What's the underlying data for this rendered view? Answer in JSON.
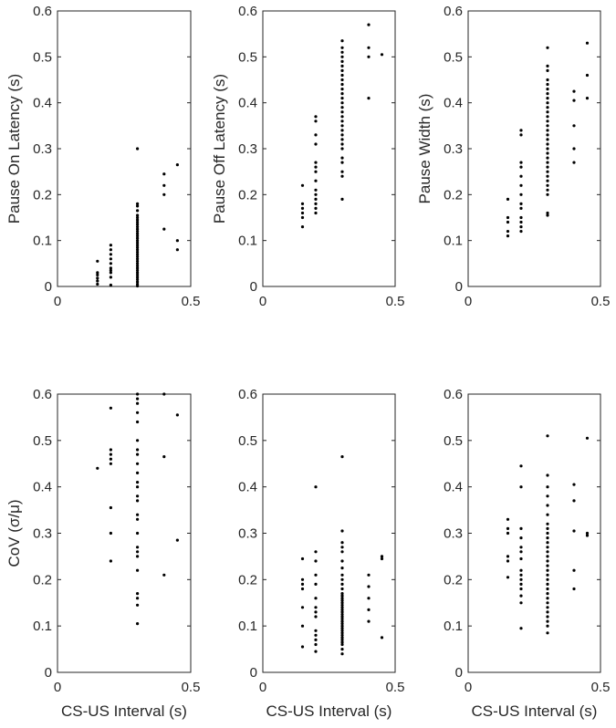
{
  "chart_data": [
    {
      "type": "scatter",
      "title": "",
      "xlabel": "",
      "ylabel": "Pause On Latency (s)",
      "xlim": [
        0,
        0.5
      ],
      "ylim": [
        0,
        0.6
      ],
      "xticks": [
        "0",
        "0.5"
      ],
      "yticks": [
        "0",
        "0.1",
        "0.2",
        "0.3",
        "0.4",
        "0.5",
        "0.6"
      ],
      "grid": false,
      "points": [
        [
          0.15,
          0.005
        ],
        [
          0.15,
          0.012
        ],
        [
          0.15,
          0.018
        ],
        [
          0.15,
          0.025
        ],
        [
          0.15,
          0.03
        ],
        [
          0.15,
          0.055
        ],
        [
          0.2,
          0.003
        ],
        [
          0.2,
          0.02
        ],
        [
          0.2,
          0.03
        ],
        [
          0.2,
          0.035
        ],
        [
          0.2,
          0.04
        ],
        [
          0.2,
          0.05
        ],
        [
          0.2,
          0.06
        ],
        [
          0.2,
          0.07
        ],
        [
          0.2,
          0.08
        ],
        [
          0.2,
          0.09
        ],
        [
          0.3,
          0.001
        ],
        [
          0.3,
          0.005
        ],
        [
          0.3,
          0.01
        ],
        [
          0.3,
          0.015
        ],
        [
          0.3,
          0.02
        ],
        [
          0.3,
          0.025
        ],
        [
          0.3,
          0.03
        ],
        [
          0.3,
          0.035
        ],
        [
          0.3,
          0.04
        ],
        [
          0.3,
          0.045
        ],
        [
          0.3,
          0.05
        ],
        [
          0.3,
          0.055
        ],
        [
          0.3,
          0.06
        ],
        [
          0.3,
          0.065
        ],
        [
          0.3,
          0.07
        ],
        [
          0.3,
          0.075
        ],
        [
          0.3,
          0.08
        ],
        [
          0.3,
          0.085
        ],
        [
          0.3,
          0.09
        ],
        [
          0.3,
          0.095
        ],
        [
          0.3,
          0.1
        ],
        [
          0.3,
          0.105
        ],
        [
          0.3,
          0.11
        ],
        [
          0.3,
          0.115
        ],
        [
          0.3,
          0.12
        ],
        [
          0.3,
          0.125
        ],
        [
          0.3,
          0.13
        ],
        [
          0.3,
          0.135
        ],
        [
          0.3,
          0.14
        ],
        [
          0.3,
          0.145
        ],
        [
          0.3,
          0.15
        ],
        [
          0.3,
          0.155
        ],
        [
          0.3,
          0.165
        ],
        [
          0.3,
          0.175
        ],
        [
          0.3,
          0.18
        ],
        [
          0.3,
          0.3
        ],
        [
          0.4,
          0.125
        ],
        [
          0.4,
          0.2
        ],
        [
          0.4,
          0.22
        ],
        [
          0.4,
          0.245
        ],
        [
          0.45,
          0.08
        ],
        [
          0.45,
          0.1
        ],
        [
          0.45,
          0.265
        ]
      ]
    },
    {
      "type": "scatter",
      "title": "",
      "xlabel": "",
      "ylabel": "Pause Off Latency (s)",
      "xlim": [
        0,
        0.5
      ],
      "ylim": [
        0,
        0.6
      ],
      "xticks": [
        "0",
        "0.5"
      ],
      "yticks": [
        "0",
        "0.1",
        "0.2",
        "0.3",
        "0.4",
        "0.5",
        "0.6"
      ],
      "grid": false,
      "points": [
        [
          0.15,
          0.13
        ],
        [
          0.15,
          0.15
        ],
        [
          0.15,
          0.16
        ],
        [
          0.15,
          0.17
        ],
        [
          0.15,
          0.18
        ],
        [
          0.15,
          0.22
        ],
        [
          0.2,
          0.16
        ],
        [
          0.2,
          0.17
        ],
        [
          0.2,
          0.18
        ],
        [
          0.2,
          0.19
        ],
        [
          0.2,
          0.2
        ],
        [
          0.2,
          0.21
        ],
        [
          0.2,
          0.23
        ],
        [
          0.2,
          0.25
        ],
        [
          0.2,
          0.26
        ],
        [
          0.2,
          0.27
        ],
        [
          0.2,
          0.31
        ],
        [
          0.2,
          0.33
        ],
        [
          0.2,
          0.36
        ],
        [
          0.2,
          0.37
        ],
        [
          0.3,
          0.19
        ],
        [
          0.3,
          0.24
        ],
        [
          0.3,
          0.25
        ],
        [
          0.3,
          0.27
        ],
        [
          0.3,
          0.28
        ],
        [
          0.3,
          0.3
        ],
        [
          0.3,
          0.31
        ],
        [
          0.3,
          0.32
        ],
        [
          0.3,
          0.33
        ],
        [
          0.3,
          0.34
        ],
        [
          0.3,
          0.35
        ],
        [
          0.3,
          0.36
        ],
        [
          0.3,
          0.37
        ],
        [
          0.3,
          0.38
        ],
        [
          0.3,
          0.39
        ],
        [
          0.3,
          0.4
        ],
        [
          0.3,
          0.41
        ],
        [
          0.3,
          0.42
        ],
        [
          0.3,
          0.43
        ],
        [
          0.3,
          0.44
        ],
        [
          0.3,
          0.45
        ],
        [
          0.3,
          0.46
        ],
        [
          0.3,
          0.47
        ],
        [
          0.3,
          0.48
        ],
        [
          0.3,
          0.49
        ],
        [
          0.3,
          0.5
        ],
        [
          0.3,
          0.51
        ],
        [
          0.3,
          0.52
        ],
        [
          0.3,
          0.535
        ],
        [
          0.4,
          0.41
        ],
        [
          0.4,
          0.5
        ],
        [
          0.4,
          0.52
        ],
        [
          0.4,
          0.57
        ],
        [
          0.45,
          0.505
        ]
      ]
    },
    {
      "type": "scatter",
      "title": "",
      "xlabel": "",
      "ylabel": "Pause Width (s)",
      "xlim": [
        0,
        0.5
      ],
      "ylim": [
        0,
        0.6
      ],
      "xticks": [
        "0",
        "0.5"
      ],
      "yticks": [
        "0",
        "0.1",
        "0.2",
        "0.3",
        "0.4",
        "0.5",
        "0.6"
      ],
      "grid": false,
      "points": [
        [
          0.15,
          0.11
        ],
        [
          0.15,
          0.12
        ],
        [
          0.15,
          0.14
        ],
        [
          0.15,
          0.15
        ],
        [
          0.15,
          0.19
        ],
        [
          0.2,
          0.12
        ],
        [
          0.2,
          0.13
        ],
        [
          0.2,
          0.14
        ],
        [
          0.2,
          0.15
        ],
        [
          0.2,
          0.17
        ],
        [
          0.2,
          0.18
        ],
        [
          0.2,
          0.2
        ],
        [
          0.2,
          0.22
        ],
        [
          0.2,
          0.24
        ],
        [
          0.2,
          0.26
        ],
        [
          0.2,
          0.27
        ],
        [
          0.2,
          0.33
        ],
        [
          0.2,
          0.34
        ],
        [
          0.3,
          0.155
        ],
        [
          0.3,
          0.16
        ],
        [
          0.3,
          0.2
        ],
        [
          0.3,
          0.21
        ],
        [
          0.3,
          0.22
        ],
        [
          0.3,
          0.23
        ],
        [
          0.3,
          0.24
        ],
        [
          0.3,
          0.25
        ],
        [
          0.3,
          0.26
        ],
        [
          0.3,
          0.27
        ],
        [
          0.3,
          0.28
        ],
        [
          0.3,
          0.29
        ],
        [
          0.3,
          0.3
        ],
        [
          0.3,
          0.31
        ],
        [
          0.3,
          0.32
        ],
        [
          0.3,
          0.33
        ],
        [
          0.3,
          0.34
        ],
        [
          0.3,
          0.35
        ],
        [
          0.3,
          0.36
        ],
        [
          0.3,
          0.37
        ],
        [
          0.3,
          0.38
        ],
        [
          0.3,
          0.39
        ],
        [
          0.3,
          0.4
        ],
        [
          0.3,
          0.41
        ],
        [
          0.3,
          0.42
        ],
        [
          0.3,
          0.43
        ],
        [
          0.3,
          0.44
        ],
        [
          0.3,
          0.45
        ],
        [
          0.3,
          0.47
        ],
        [
          0.3,
          0.48
        ],
        [
          0.3,
          0.52
        ],
        [
          0.4,
          0.27
        ],
        [
          0.4,
          0.3
        ],
        [
          0.4,
          0.35
        ],
        [
          0.4,
          0.405
        ],
        [
          0.4,
          0.425
        ],
        [
          0.45,
          0.41
        ],
        [
          0.45,
          0.46
        ],
        [
          0.45,
          0.53
        ]
      ]
    },
    {
      "type": "scatter",
      "title": "",
      "xlabel": "CS-US Interval (s)",
      "ylabel": "CoV (σ/μ)",
      "xlim": [
        0,
        0.5
      ],
      "ylim": [
        0,
        0.6
      ],
      "xticks": [
        "0",
        "0.5"
      ],
      "yticks": [
        "0",
        "0.1",
        "0.2",
        "0.3",
        "0.4",
        "0.5",
        "0.6"
      ],
      "grid": false,
      "points": [
        [
          0.15,
          0.44
        ],
        [
          0.2,
          0.24
        ],
        [
          0.2,
          0.3
        ],
        [
          0.2,
          0.355
        ],
        [
          0.2,
          0.45
        ],
        [
          0.2,
          0.46
        ],
        [
          0.2,
          0.47
        ],
        [
          0.2,
          0.48
        ],
        [
          0.2,
          0.57
        ],
        [
          0.3,
          0.105
        ],
        [
          0.3,
          0.145
        ],
        [
          0.3,
          0.16
        ],
        [
          0.3,
          0.17
        ],
        [
          0.3,
          0.22
        ],
        [
          0.3,
          0.25
        ],
        [
          0.3,
          0.26
        ],
        [
          0.3,
          0.27
        ],
        [
          0.3,
          0.3
        ],
        [
          0.3,
          0.33
        ],
        [
          0.3,
          0.34
        ],
        [
          0.3,
          0.37
        ],
        [
          0.3,
          0.38
        ],
        [
          0.3,
          0.4
        ],
        [
          0.3,
          0.41
        ],
        [
          0.3,
          0.43
        ],
        [
          0.3,
          0.45
        ],
        [
          0.3,
          0.47
        ],
        [
          0.3,
          0.48
        ],
        [
          0.3,
          0.5
        ],
        [
          0.3,
          0.54
        ],
        [
          0.3,
          0.56
        ],
        [
          0.3,
          0.58
        ],
        [
          0.3,
          0.59
        ],
        [
          0.3,
          0.6
        ],
        [
          0.4,
          0.21
        ],
        [
          0.4,
          0.465
        ],
        [
          0.4,
          0.6
        ],
        [
          0.45,
          0.285
        ],
        [
          0.45,
          0.555
        ]
      ]
    },
    {
      "type": "scatter",
      "title": "",
      "xlabel": "CS-US Interval (s)",
      "ylabel": "",
      "xlim": [
        0,
        0.5
      ],
      "ylim": [
        0,
        0.6
      ],
      "xticks": [
        "0",
        "0.5"
      ],
      "yticks": [
        "0",
        "0.1",
        "0.2",
        "0.3",
        "0.4",
        "0.5",
        "0.6"
      ],
      "grid": false,
      "points": [
        [
          0.15,
          0.055
        ],
        [
          0.15,
          0.1
        ],
        [
          0.15,
          0.14
        ],
        [
          0.15,
          0.18
        ],
        [
          0.15,
          0.19
        ],
        [
          0.15,
          0.2
        ],
        [
          0.15,
          0.245
        ],
        [
          0.2,
          0.045
        ],
        [
          0.2,
          0.06
        ],
        [
          0.2,
          0.07
        ],
        [
          0.2,
          0.08
        ],
        [
          0.2,
          0.09
        ],
        [
          0.2,
          0.12
        ],
        [
          0.2,
          0.13
        ],
        [
          0.2,
          0.14
        ],
        [
          0.2,
          0.16
        ],
        [
          0.2,
          0.19
        ],
        [
          0.2,
          0.21
        ],
        [
          0.2,
          0.24
        ],
        [
          0.2,
          0.26
        ],
        [
          0.2,
          0.4
        ],
        [
          0.3,
          0.04
        ],
        [
          0.3,
          0.05
        ],
        [
          0.3,
          0.06
        ],
        [
          0.3,
          0.065
        ],
        [
          0.3,
          0.07
        ],
        [
          0.3,
          0.075
        ],
        [
          0.3,
          0.08
        ],
        [
          0.3,
          0.085
        ],
        [
          0.3,
          0.09
        ],
        [
          0.3,
          0.095
        ],
        [
          0.3,
          0.1
        ],
        [
          0.3,
          0.105
        ],
        [
          0.3,
          0.11
        ],
        [
          0.3,
          0.115
        ],
        [
          0.3,
          0.12
        ],
        [
          0.3,
          0.125
        ],
        [
          0.3,
          0.13
        ],
        [
          0.3,
          0.135
        ],
        [
          0.3,
          0.14
        ],
        [
          0.3,
          0.145
        ],
        [
          0.3,
          0.15
        ],
        [
          0.3,
          0.155
        ],
        [
          0.3,
          0.16
        ],
        [
          0.3,
          0.165
        ],
        [
          0.3,
          0.17
        ],
        [
          0.3,
          0.18
        ],
        [
          0.3,
          0.19
        ],
        [
          0.3,
          0.2
        ],
        [
          0.3,
          0.21
        ],
        [
          0.3,
          0.225
        ],
        [
          0.3,
          0.24
        ],
        [
          0.3,
          0.26
        ],
        [
          0.3,
          0.27
        ],
        [
          0.3,
          0.28
        ],
        [
          0.3,
          0.305
        ],
        [
          0.3,
          0.465
        ],
        [
          0.4,
          0.11
        ],
        [
          0.4,
          0.135
        ],
        [
          0.4,
          0.16
        ],
        [
          0.4,
          0.185
        ],
        [
          0.4,
          0.21
        ],
        [
          0.45,
          0.075
        ],
        [
          0.45,
          0.245
        ],
        [
          0.45,
          0.25
        ]
      ]
    },
    {
      "type": "scatter",
      "title": "",
      "xlabel": "CS-US Interval (s)",
      "ylabel": "",
      "xlim": [
        0,
        0.5
      ],
      "ylim": [
        0,
        0.6
      ],
      "xticks": [
        "0",
        "0.5"
      ],
      "yticks": [
        "0",
        "0.1",
        "0.2",
        "0.3",
        "0.4",
        "0.5",
        "0.6"
      ],
      "grid": false,
      "points": [
        [
          0.15,
          0.205
        ],
        [
          0.15,
          0.24
        ],
        [
          0.15,
          0.25
        ],
        [
          0.15,
          0.3
        ],
        [
          0.15,
          0.31
        ],
        [
          0.15,
          0.33
        ],
        [
          0.2,
          0.095
        ],
        [
          0.2,
          0.15
        ],
        [
          0.2,
          0.165
        ],
        [
          0.2,
          0.18
        ],
        [
          0.2,
          0.19
        ],
        [
          0.2,
          0.2
        ],
        [
          0.2,
          0.21
        ],
        [
          0.2,
          0.22
        ],
        [
          0.2,
          0.245
        ],
        [
          0.2,
          0.26
        ],
        [
          0.2,
          0.27
        ],
        [
          0.2,
          0.29
        ],
        [
          0.2,
          0.31
        ],
        [
          0.2,
          0.4
        ],
        [
          0.2,
          0.445
        ],
        [
          0.3,
          0.085
        ],
        [
          0.3,
          0.1
        ],
        [
          0.3,
          0.11
        ],
        [
          0.3,
          0.12
        ],
        [
          0.3,
          0.13
        ],
        [
          0.3,
          0.14
        ],
        [
          0.3,
          0.15
        ],
        [
          0.3,
          0.16
        ],
        [
          0.3,
          0.17
        ],
        [
          0.3,
          0.18
        ],
        [
          0.3,
          0.19
        ],
        [
          0.3,
          0.2
        ],
        [
          0.3,
          0.21
        ],
        [
          0.3,
          0.22
        ],
        [
          0.3,
          0.23
        ],
        [
          0.3,
          0.24
        ],
        [
          0.3,
          0.25
        ],
        [
          0.3,
          0.26
        ],
        [
          0.3,
          0.27
        ],
        [
          0.3,
          0.28
        ],
        [
          0.3,
          0.29
        ],
        [
          0.3,
          0.3
        ],
        [
          0.3,
          0.31
        ],
        [
          0.3,
          0.32
        ],
        [
          0.3,
          0.34
        ],
        [
          0.3,
          0.36
        ],
        [
          0.3,
          0.38
        ],
        [
          0.3,
          0.4
        ],
        [
          0.3,
          0.425
        ],
        [
          0.3,
          0.51
        ],
        [
          0.4,
          0.18
        ],
        [
          0.4,
          0.22
        ],
        [
          0.4,
          0.305
        ],
        [
          0.4,
          0.37
        ],
        [
          0.4,
          0.405
        ],
        [
          0.45,
          0.295
        ],
        [
          0.45,
          0.3
        ],
        [
          0.45,
          0.505
        ]
      ]
    }
  ]
}
